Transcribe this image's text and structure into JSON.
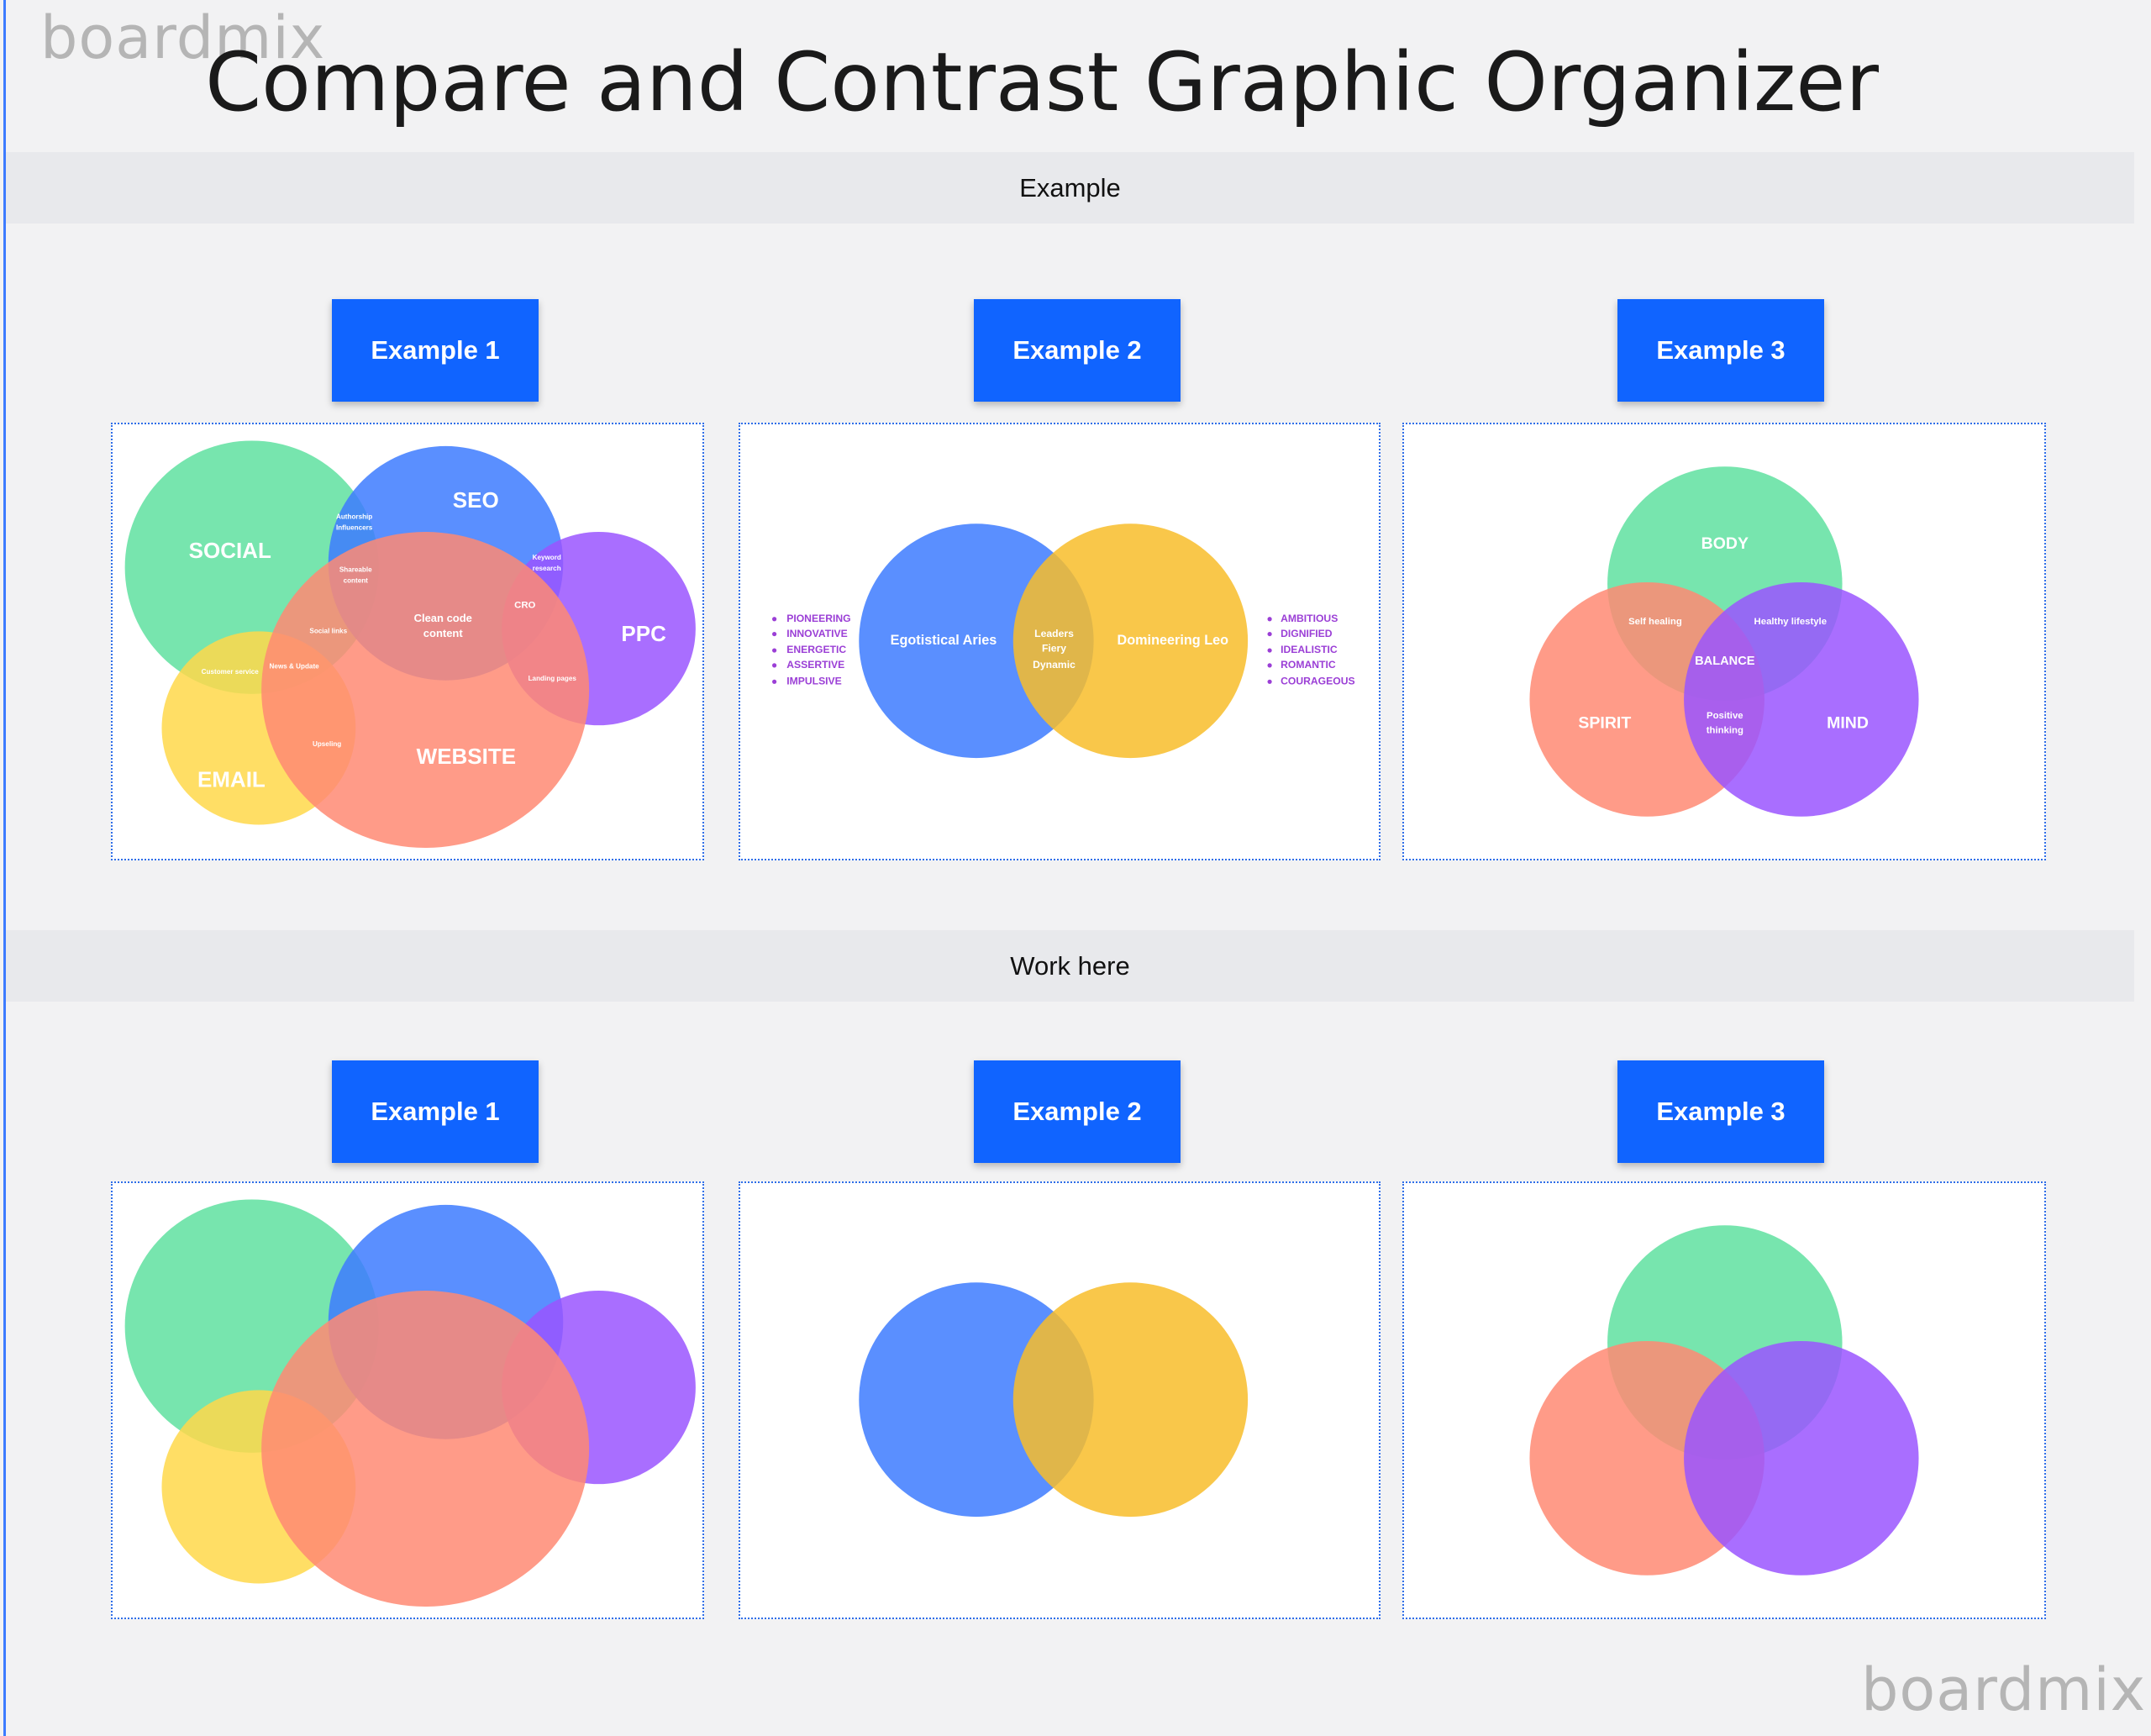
{
  "watermark_top": "boardmix",
  "watermark_bottom": "boardmix",
  "title": "Compare and Contrast Graphic Organizer",
  "sections": {
    "example": {
      "label": "Example"
    },
    "work": {
      "label": "Work here"
    }
  },
  "buttons": [
    "Example 1",
    "Example 2",
    "Example 3"
  ],
  "colors": {
    "accent": "#1064ff",
    "green": "#5fe0a0",
    "blue": "#3d7bff",
    "purple": "#9a55ff",
    "yellow": "#ffd84a",
    "salmon": "#ff8a73",
    "gold": "#f8bd2a",
    "list_text": "#9b3fd6"
  },
  "example1": {
    "social": "SOCIAL",
    "seo": "SEO",
    "ppc": "PPC",
    "email": "EMAIL",
    "website": "WEBSITE",
    "authorship": "Authorship",
    "influencers": "Influencers",
    "shareable": "Shareable",
    "content": "content",
    "clean_code": "Clean code",
    "clean_content": "content",
    "keyword": "Keyword",
    "research": "research",
    "cro": "CRO",
    "social_links": "Social links",
    "customer_service": "Customer service",
    "news_update": "News & Update",
    "landing_pages": "Landing pages",
    "upseling": "Upseling"
  },
  "example2": {
    "left": "Egotistical Aries",
    "right": "Domineering Leo",
    "overlap": [
      "Leaders",
      "Fiery",
      "Dynamic"
    ],
    "left_list": [
      "PIONEERING",
      "INNOVATIVE",
      "ENERGETIC",
      "ASSERTIVE",
      "IMPULSIVE"
    ],
    "right_list": [
      "AMBITIOUS",
      "DIGNIFIED",
      "IDEALISTIC",
      "ROMANTIC",
      "COURAGEOUS"
    ]
  },
  "example3": {
    "body": "BODY",
    "spirit": "SPIRIT",
    "mind": "MIND",
    "balance": "BALANCE",
    "self_healing": "Self healing",
    "healthy_lifestyle": "Healthy lifestyle",
    "positive": "Positive",
    "thinking": "thinking"
  }
}
